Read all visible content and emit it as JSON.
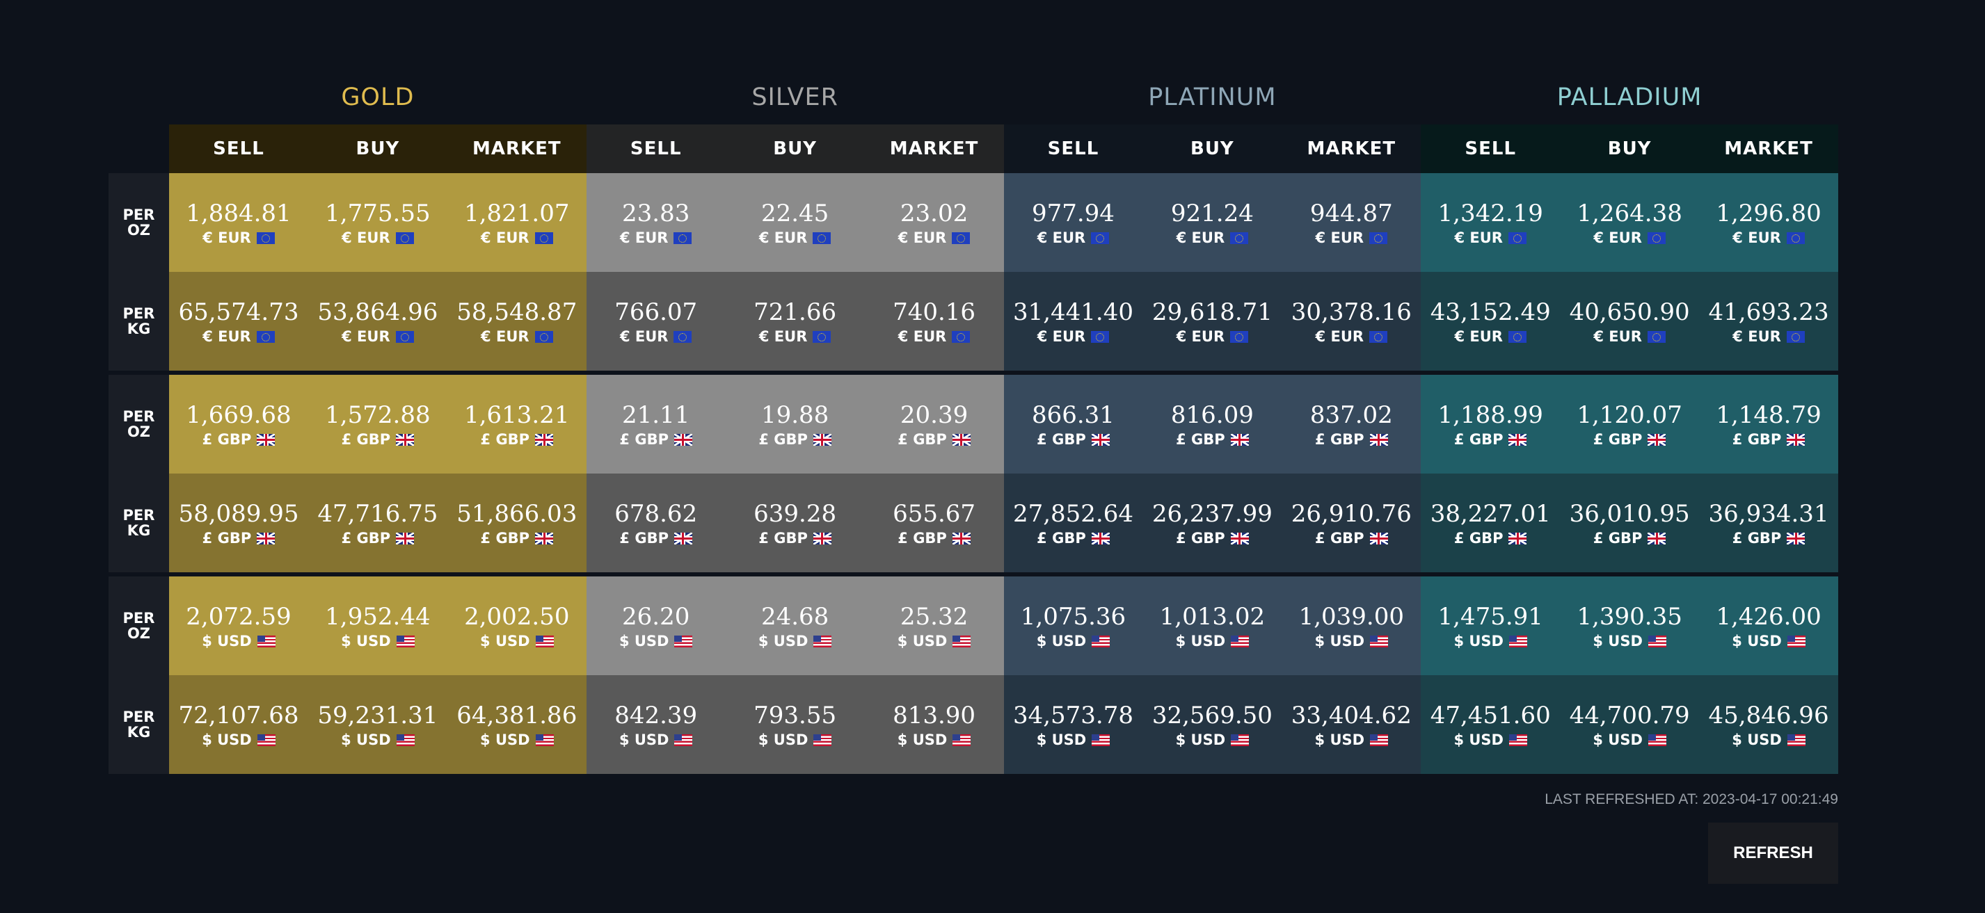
{
  "metals": [
    {
      "key": "gold",
      "title": "GOLD",
      "title_color": "#e0bc4f",
      "header_bg": "#2a2209",
      "oz_bg": "#b09a40",
      "kg_bg": "#857330"
    },
    {
      "key": "silver",
      "title": "SILVER",
      "title_color": "#a7a7a7",
      "header_bg": "#232425",
      "oz_bg": "#8b8b8b",
      "kg_bg": "#595959"
    },
    {
      "key": "platinum",
      "title": "PLATINUM",
      "title_color": "#8ea6b6",
      "header_bg": "#0f161f",
      "oz_bg": "#374a5d",
      "kg_bg": "#253543"
    },
    {
      "key": "palladium",
      "title": "PALLADIUM",
      "title_color": "#8fcfd2",
      "header_bg": "#061a1b",
      "oz_bg": "#205e67",
      "kg_bg": "#1b4149"
    }
  ],
  "columns": [
    "SELL",
    "BUY",
    "MARKET"
  ],
  "unit_labels": {
    "oz": [
      "PER",
      "OZ"
    ],
    "kg": [
      "PER",
      "KG"
    ]
  },
  "currencies": [
    {
      "code": "eur",
      "label": "€ EUR",
      "flag": "eu-flag",
      "rows": {
        "oz": [
          [
            "1,884.81",
            "1,775.55",
            "1,821.07"
          ],
          [
            "23.83",
            "22.45",
            "23.02"
          ],
          [
            "977.94",
            "921.24",
            "944.87"
          ],
          [
            "1,342.19",
            "1,264.38",
            "1,296.80"
          ]
        ],
        "kg": [
          [
            "65,574.73",
            "53,864.96",
            "58,548.87"
          ],
          [
            "766.07",
            "721.66",
            "740.16"
          ],
          [
            "31,441.40",
            "29,618.71",
            "30,378.16"
          ],
          [
            "43,152.49",
            "40,650.90",
            "41,693.23"
          ]
        ]
      }
    },
    {
      "code": "gbp",
      "label": "£ GBP",
      "flag": "uk-flag",
      "rows": {
        "oz": [
          [
            "1,669.68",
            "1,572.88",
            "1,613.21"
          ],
          [
            "21.11",
            "19.88",
            "20.39"
          ],
          [
            "866.31",
            "816.09",
            "837.02"
          ],
          [
            "1,188.99",
            "1,120.07",
            "1,148.79"
          ]
        ],
        "kg": [
          [
            "58,089.95",
            "47,716.75",
            "51,866.03"
          ],
          [
            "678.62",
            "639.28",
            "655.67"
          ],
          [
            "27,852.64",
            "26,237.99",
            "26,910.76"
          ],
          [
            "38,227.01",
            "36,010.95",
            "36,934.31"
          ]
        ]
      }
    },
    {
      "code": "usd",
      "label": "$ USD",
      "flag": "us-flag",
      "rows": {
        "oz": [
          [
            "2,072.59",
            "1,952.44",
            "2,002.50"
          ],
          [
            "26.20",
            "24.68",
            "25.32"
          ],
          [
            "1,075.36",
            "1,013.02",
            "1,039.00"
          ],
          [
            "1,475.91",
            "1,390.35",
            "1,426.00"
          ]
        ],
        "kg": [
          [
            "72,107.68",
            "59,231.31",
            "64,381.86"
          ],
          [
            "842.39",
            "793.55",
            "813.90"
          ],
          [
            "34,573.78",
            "32,569.50",
            "33,404.62"
          ],
          [
            "47,451.60",
            "44,700.79",
            "45,846.96"
          ]
        ]
      }
    }
  ],
  "footer": {
    "last_refreshed": "LAST REFRESHED AT: 2023-04-17 00:21:49",
    "refresh_label": "REFRESH"
  }
}
